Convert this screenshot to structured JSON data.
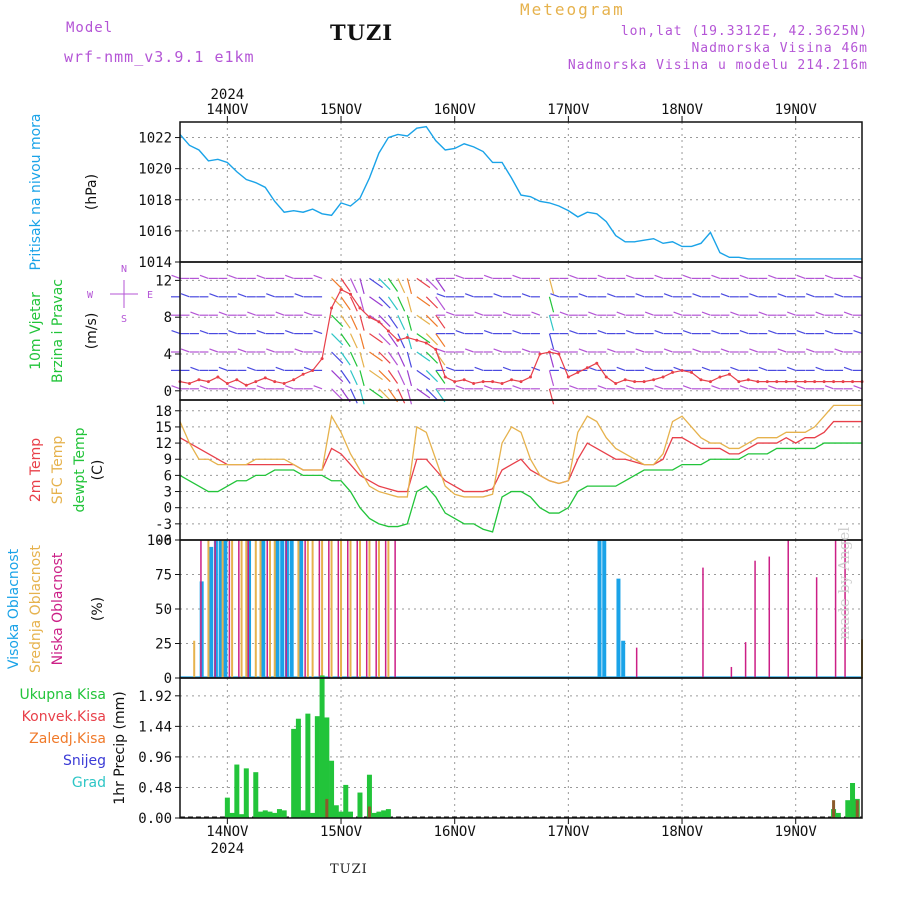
{
  "header": {
    "model_label": "Model",
    "model_name": "wrf-nmm_v3.9.1  e1km",
    "station": "TUZI",
    "meteogram_title": "Meteogram",
    "coords": "lon,lat (19.3312E, 42.3625N)",
    "elevation": "Nadmorska Visina 46m",
    "model_elevation": "Nadmorska Visina u modelu 214.216m",
    "footer_station": "TUZI",
    "credit": "made by Angel"
  },
  "colors": {
    "pressure": "#1aa3e8",
    "temp2m": "#e8404a",
    "sfc": "#e6b24d",
    "dewpt": "#22c43a",
    "wind_label": "#22c43a",
    "wind_label2": "#b455d6",
    "high_cloud": "#1aa3e8",
    "mid_cloud": "#e6b24d",
    "low_cloud": "#cc1f86",
    "total_precip": "#22c43a",
    "conv_precip": "#e8404a",
    "frz_precip": "#f07a2a",
    "snow": "#3b3bd6",
    "hail": "#2ec6c6"
  },
  "time_axis": {
    "year": "2024",
    "days": [
      "14NOV",
      "15NOV",
      "16NOV",
      "17NOV",
      "18NOV",
      "19NOV"
    ],
    "start_hour": -10,
    "end_hour": 134
  },
  "compass": {
    "n": "N",
    "s": "S",
    "e": "E",
    "w": "W"
  },
  "chart_data": [
    {
      "type": "line",
      "ylabel_main": "Pritisak na nivou mora",
      "unit": "(hPa)",
      "ylim": [
        1014,
        1023
      ],
      "yticks": [
        1014,
        1016,
        1018,
        1020,
        1022
      ],
      "grid": true,
      "series": [
        {
          "name": "Pritisak na nivou mora",
          "x": [
            -10,
            -8,
            -6,
            -4,
            -2,
            0,
            2,
            4,
            6,
            8,
            10,
            12,
            14,
            16,
            18,
            20,
            22,
            24,
            26,
            28,
            30,
            32,
            34,
            36,
            38,
            40,
            42,
            44,
            46,
            48,
            50,
            52,
            54,
            56,
            58,
            60,
            62,
            64,
            66,
            68,
            70,
            72,
            74,
            76,
            78,
            80,
            82,
            84,
            86,
            88,
            90,
            92,
            94,
            96,
            98,
            100,
            102,
            104,
            106,
            108,
            110,
            112,
            114,
            116,
            118,
            120,
            122,
            124,
            126,
            128,
            130,
            132,
            134
          ],
          "values": [
            1022.2,
            1021.5,
            1021.2,
            1020.5,
            1020.6,
            1020.4,
            1019.8,
            1019.3,
            1019.1,
            1018.8,
            1017.9,
            1017.2,
            1017.3,
            1017.2,
            1017.4,
            1017.1,
            1017.0,
            1017.8,
            1017.6,
            1018.1,
            1019.4,
            1021.0,
            1022.0,
            1022.2,
            1022.1,
            1022.6,
            1022.7,
            1021.8,
            1021.2,
            1021.3,
            1021.6,
            1021.4,
            1021.1,
            1020.4,
            1020.4,
            1019.4,
            1018.3,
            1018.2,
            1017.9,
            1017.8,
            1017.6,
            1017.3,
            1016.9,
            1017.2,
            1017.1,
            1016.6,
            1015.7,
            1015.3,
            1015.3,
            1015.4,
            1015.5,
            1015.2,
            1015.3,
            1015.0,
            1015.0,
            1015.2,
            1015.9,
            1014.6,
            1014.3,
            1014.3,
            1014.2,
            1014.2,
            1014.2,
            1014.2,
            1014.2,
            1014.2,
            1014.2,
            1014.2,
            1014.2,
            1014.2,
            1014.2,
            1014.2,
            1014.2
          ]
        }
      ]
    },
    {
      "type": "scatter",
      "ylabel_main": "10m Vjetar",
      "ylabel_sub": "Brzina i Pravac",
      "unit": "(m/s)",
      "ylim": [
        -1,
        14
      ],
      "yticks": [
        0,
        4,
        8,
        12
      ],
      "grid": true,
      "series": [
        {
          "name": "Brzina",
          "x": [
            -10,
            -8,
            -6,
            -4,
            -2,
            0,
            2,
            4,
            6,
            8,
            10,
            12,
            14,
            16,
            18,
            20,
            22,
            24,
            26,
            28,
            30,
            32,
            34,
            36,
            38,
            40,
            42,
            44,
            46,
            48,
            50,
            52,
            54,
            56,
            58,
            60,
            62,
            64,
            66,
            68,
            70,
            72,
            74,
            76,
            78,
            80,
            82,
            84,
            86,
            88,
            90,
            92,
            94,
            96,
            98,
            100,
            102,
            104,
            106,
            108,
            110,
            112,
            114,
            116,
            118,
            120,
            122,
            124,
            126,
            128,
            130,
            132,
            134
          ],
          "values": [
            1.0,
            0.8,
            1.2,
            1.0,
            1.5,
            0.8,
            1.2,
            0.6,
            1.0,
            1.4,
            1.0,
            0.8,
            1.2,
            1.8,
            2.2,
            3.5,
            9.0,
            11.0,
            10.5,
            9.0,
            8.0,
            7.5,
            6.5,
            5.5,
            5.8,
            5.5,
            5.2,
            4.5,
            1.5,
            1.0,
            1.2,
            0.8,
            1.0,
            1.0,
            0.8,
            1.2,
            1.0,
            1.5,
            4.0,
            4.2,
            4.0,
            1.5,
            2.0,
            2.5,
            3.0,
            1.5,
            0.8,
            1.2,
            1.0,
            1.0,
            1.2,
            1.5,
            2.0,
            2.2,
            2.0,
            1.2,
            1.0,
            1.5,
            1.8,
            1.0,
            1.2,
            1.0,
            1.0,
            1.0,
            1.0,
            1.0,
            1.0,
            1.0,
            1.0,
            1.0,
            1.0,
            1.0,
            1.0
          ]
        }
      ]
    },
    {
      "type": "line",
      "ylabel_main": "2m Temp",
      "ylabel_sub": "SFC Temp",
      "ylabel_sub2": "dewpt Temp",
      "unit": "(C)",
      "ylim": [
        -6,
        20
      ],
      "yticks": [
        -6,
        -3,
        0,
        3,
        6,
        9,
        12,
        15,
        18
      ],
      "grid": true,
      "x": [
        -10,
        -8,
        -6,
        -4,
        -2,
        0,
        2,
        4,
        6,
        8,
        10,
        12,
        14,
        16,
        18,
        20,
        22,
        24,
        26,
        28,
        30,
        32,
        34,
        36,
        38,
        40,
        42,
        44,
        46,
        48,
        50,
        52,
        54,
        56,
        58,
        60,
        62,
        64,
        66,
        68,
        70,
        72,
        74,
        76,
        78,
        80,
        82,
        84,
        86,
        88,
        90,
        92,
        94,
        96,
        98,
        100,
        102,
        104,
        106,
        108,
        110,
        112,
        114,
        116,
        118,
        120,
        122,
        124,
        126,
        128,
        130,
        132,
        134
      ],
      "series": [
        {
          "name": "2m Temp",
          "values": [
            13,
            12,
            11,
            10,
            9,
            8,
            8,
            8,
            8,
            8,
            8,
            8,
            8,
            7,
            7,
            7,
            11,
            10,
            8,
            6,
            5,
            4,
            3.5,
            3,
            3,
            9,
            9,
            7,
            5,
            4,
            3,
            3,
            3,
            3.5,
            7,
            8,
            9,
            7,
            6,
            5,
            4.5,
            5,
            9,
            12,
            11,
            10,
            9,
            9,
            8.5,
            8,
            8,
            9,
            13,
            13,
            12,
            11,
            11,
            11,
            10,
            10,
            11,
            12,
            12,
            12,
            13,
            12,
            13,
            13,
            14,
            16,
            16,
            16,
            16
          ]
        },
        {
          "name": "SFC Temp",
          "values": [
            16,
            12,
            9,
            9,
            8,
            8,
            8,
            8,
            9,
            9,
            9,
            9,
            8,
            7,
            7,
            7,
            17,
            14,
            10,
            7,
            4,
            3,
            2.5,
            2,
            2,
            15,
            14,
            9,
            4,
            2.5,
            2,
            2,
            2,
            2.5,
            12,
            15,
            14,
            9,
            6,
            5,
            4.5,
            5,
            14,
            17,
            16,
            13,
            11,
            10,
            9,
            8,
            8,
            10,
            16,
            17,
            15,
            13,
            12,
            12,
            11,
            11,
            12,
            13,
            13,
            13,
            14,
            14,
            14,
            15,
            17,
            19,
            19,
            19,
            19
          ]
        },
        {
          "name": "dewpt Temp",
          "values": [
            6,
            5,
            4,
            3,
            3,
            4,
            5,
            5,
            6,
            6,
            7,
            7,
            7,
            6,
            6,
            6,
            5,
            5,
            3,
            0,
            -2,
            -3,
            -3.5,
            -3.5,
            -3,
            3,
            4,
            2,
            -1,
            -2,
            -3,
            -3,
            -4,
            -4.5,
            2,
            3,
            3,
            2,
            0,
            -1,
            -1,
            0,
            3,
            4,
            4,
            4,
            4,
            5,
            6,
            7,
            7,
            7,
            7,
            8,
            8,
            8,
            9,
            9,
            9,
            9,
            10,
            10,
            10,
            11,
            11,
            11,
            11,
            11,
            12,
            12,
            12,
            12,
            12
          ]
        }
      ]
    },
    {
      "type": "bar",
      "ylabel_main": "Visoka Oblacnost",
      "ylabel_sub": "Srednja Oblacnost",
      "ylabel_sub2": "Niska Oblacnost",
      "unit": "(%)",
      "ylim": [
        0,
        100
      ],
      "yticks": [
        0,
        25,
        50,
        75,
        100
      ],
      "grid": true,
      "series": [
        {
          "name": "Visoka Oblacnost",
          "x": [
            -5,
            -3,
            -2,
            -1,
            0,
            5,
            8,
            11,
            12,
            13,
            14,
            16,
            79,
            80,
            83,
            84
          ],
          "values": [
            70,
            95,
            100,
            100,
            100,
            100,
            100,
            100,
            100,
            100,
            100,
            100,
            100,
            100,
            72,
            27
          ]
        },
        {
          "name": "Srednja Oblacnost",
          "x": [
            -7,
            -4,
            -1,
            1,
            3,
            4,
            6,
            7,
            9,
            10,
            15,
            17,
            18,
            20,
            22,
            24,
            26,
            28,
            30,
            32,
            34,
            134
          ],
          "values": [
            27,
            100,
            100,
            100,
            100,
            100,
            100,
            100,
            100,
            100,
            100,
            100,
            100,
            100,
            100,
            100,
            100,
            100,
            100,
            100,
            100,
            28
          ]
        },
        {
          "name": "Niska Oblacnost",
          "x": [
            -6,
            -3,
            0,
            2,
            4,
            8,
            12,
            16,
            19,
            21,
            23,
            25,
            27,
            29,
            31,
            33,
            35,
            86,
            100,
            106,
            109,
            111,
            114,
            118,
            124,
            128,
            130
          ],
          "values": [
            100,
            100,
            100,
            100,
            100,
            100,
            100,
            100,
            100,
            100,
            100,
            100,
            100,
            100,
            100,
            100,
            100,
            22,
            80,
            8,
            26,
            85,
            88,
            100,
            73,
            100,
            100
          ]
        }
      ]
    },
    {
      "type": "bar",
      "ylabel_main": "1hr Precip (mm)",
      "ylim": [
        0,
        2.2
      ],
      "yticks": [
        0,
        0.48,
        0.96,
        1.44,
        1.92
      ],
      "grid": true,
      "series": [
        {
          "name": "Ukupna Kisa",
          "x": [
            0,
            1,
            2,
            3,
            4,
            6,
            7,
            8,
            9,
            10,
            11,
            12,
            14,
            15,
            16,
            17,
            18,
            19,
            20,
            21,
            22,
            23,
            24,
            25,
            26,
            28,
            30,
            31,
            32,
            33,
            34,
            128,
            129,
            131,
            132,
            133
          ],
          "values": [
            0.32,
            0.08,
            0.84,
            0.06,
            0.78,
            0.72,
            0.1,
            0.12,
            0.1,
            0.08,
            0.14,
            0.12,
            1.4,
            1.56,
            0.12,
            1.64,
            0.08,
            1.6,
            2.24,
            1.58,
            0.9,
            0.2,
            0.1,
            0.52,
            0.1,
            0.4,
            0.68,
            0.08,
            0.1,
            0.12,
            0.14,
            0.14,
            0.08,
            0.28,
            0.55,
            0.3
          ]
        },
        {
          "name": "Konvek.Kisa",
          "x": [
            21,
            30,
            128,
            133
          ],
          "values": [
            0.3,
            0.18,
            0.28,
            0.28
          ]
        },
        {
          "name": "Zaledj.Kisa",
          "x": [],
          "values": []
        },
        {
          "name": "Snijeg",
          "x": [],
          "values": []
        },
        {
          "name": "Grad",
          "x": [],
          "values": []
        }
      ]
    }
  ]
}
